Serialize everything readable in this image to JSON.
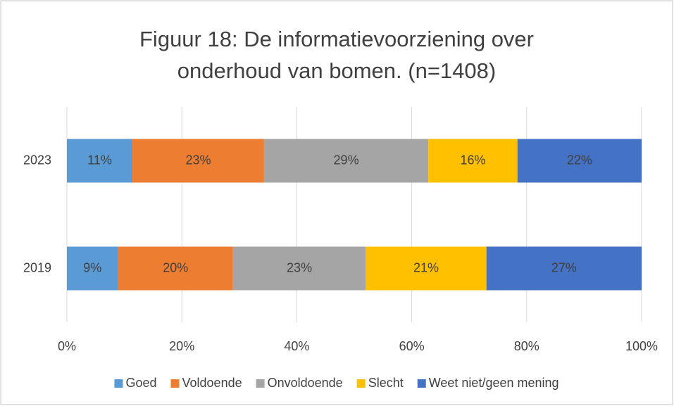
{
  "chart_data": {
    "type": "stacked_barh",
    "title": [
      "Figuur 18: De informatievoorziening over",
      "onderhoud van bomen. (n=1408)"
    ],
    "categories": [
      "2023",
      "2019"
    ],
    "series": [
      {
        "name": "Goed",
        "color": "#5b9bd5",
        "values": [
          11.4,
          8.9
        ],
        "value_labels": [
          "11%",
          "9%"
        ]
      },
      {
        "name": "Voldoende",
        "color": "#ed7d31",
        "values": [
          22.9,
          20.0
        ],
        "value_labels": [
          "23%",
          "20%"
        ]
      },
      {
        "name": "Onvoldoende",
        "color": "#a5a5a5",
        "values": [
          28.6,
          23.1
        ],
        "value_labels": [
          "29%",
          "23%"
        ]
      },
      {
        "name": "Slecht",
        "color": "#ffc000",
        "values": [
          15.5,
          21.0
        ],
        "value_labels": [
          "16%",
          "21%"
        ]
      },
      {
        "name": "Weet niet/geen mening",
        "color": "#4472c4",
        "values": [
          21.6,
          27.0
        ],
        "value_labels": [
          "22%",
          "27%"
        ]
      }
    ],
    "xlim": [
      0,
      100
    ],
    "xticks": [
      {
        "value": 0,
        "label": "0%"
      },
      {
        "value": 20,
        "label": "20%"
      },
      {
        "value": 40,
        "label": "40%"
      },
      {
        "value": 60,
        "label": "60%"
      },
      {
        "value": 80,
        "label": "80%"
      },
      {
        "value": 100,
        "label": "100%"
      }
    ],
    "grid": true,
    "legend": "bottom"
  }
}
